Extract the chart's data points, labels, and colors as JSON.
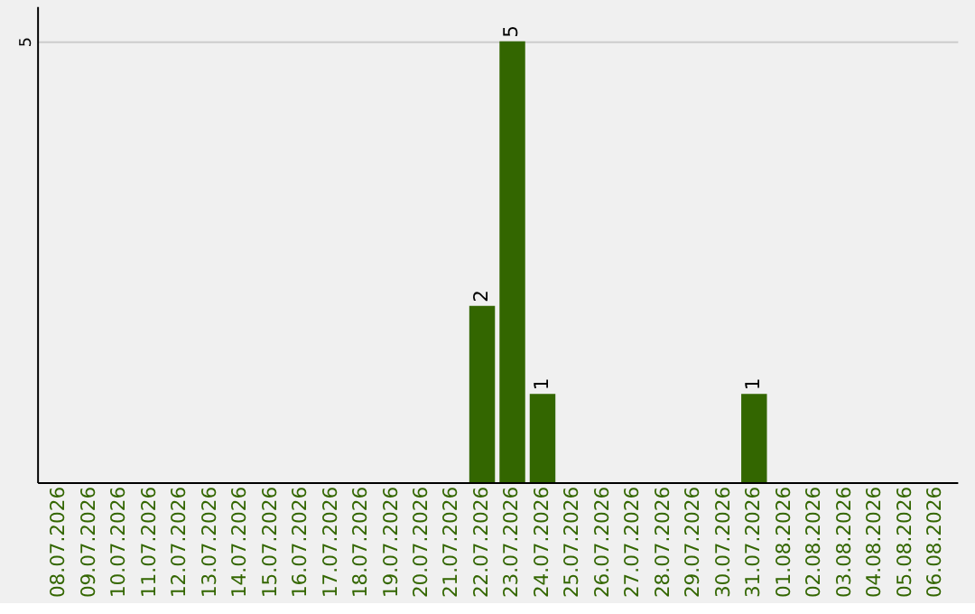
{
  "chart_data": {
    "type": "bar",
    "categories": [
      "08.07.2026",
      "09.07.2026",
      "10.07.2026",
      "11.07.2026",
      "12.07.2026",
      "13.07.2026",
      "14.07.2026",
      "15.07.2026",
      "16.07.2026",
      "17.07.2026",
      "18.07.2026",
      "19.07.2026",
      "20.07.2026",
      "21.07.2026",
      "22.07.2026",
      "23.07.2026",
      "24.07.2026",
      "25.07.2026",
      "26.07.2026",
      "27.07.2026",
      "28.07.2026",
      "29.07.2026",
      "30.07.2026",
      "31.07.2026",
      "01.08.2026",
      "02.08.2026",
      "03.08.2026",
      "04.08.2026",
      "05.08.2026",
      "06.08.2026"
    ],
    "values": [
      null,
      null,
      null,
      null,
      null,
      null,
      null,
      null,
      null,
      null,
      null,
      null,
      null,
      null,
      2,
      5,
      1,
      null,
      null,
      null,
      null,
      null,
      null,
      1,
      null,
      null,
      null,
      null,
      null,
      null
    ],
    "color": "#336600",
    "ylim": [
      0,
      5.4
    ],
    "yticks": [
      5
    ],
    "grid": "y",
    "data_labels": true
  }
}
